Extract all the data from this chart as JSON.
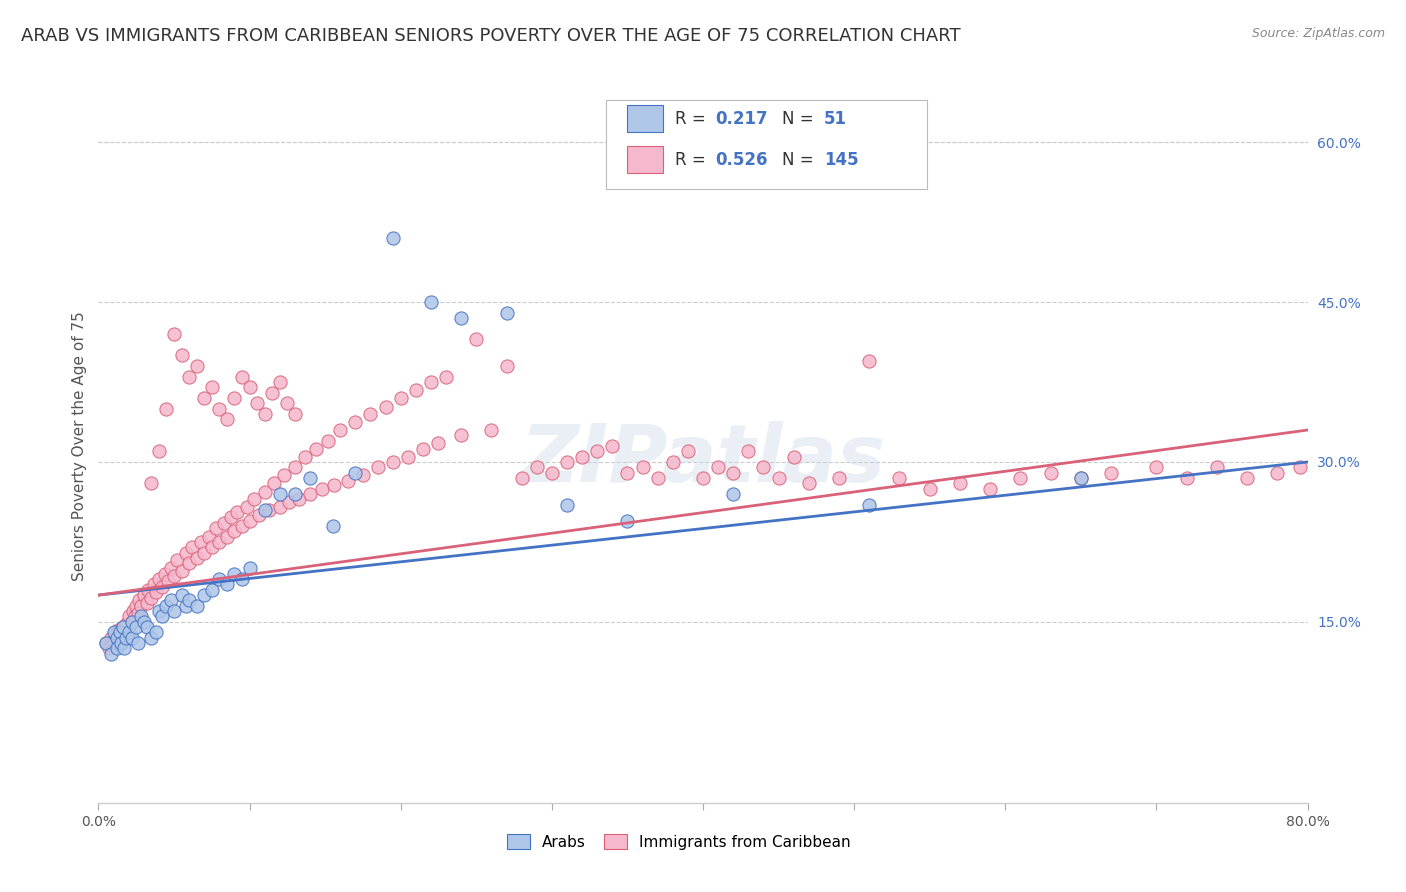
{
  "title": "ARAB VS IMMIGRANTS FROM CARIBBEAN SENIORS POVERTY OVER THE AGE OF 75 CORRELATION CHART",
  "source": "Source: ZipAtlas.com",
  "ylabel": "Seniors Poverty Over the Age of 75",
  "watermark": "ZIPatlas",
  "arab_R": 0.217,
  "arab_N": 51,
  "carib_R": 0.526,
  "carib_N": 145,
  "arab_color": "#aec6e8",
  "carib_color": "#f5b8cc",
  "arab_line_color": "#4472c4",
  "carib_line_color": "#d9627a",
  "xlim": [
    0.0,
    0.8
  ],
  "ylim": [
    -0.02,
    0.65
  ],
  "x_ticks": [
    0.0,
    0.1,
    0.2,
    0.3,
    0.4,
    0.5,
    0.6,
    0.7,
    0.8
  ],
  "x_tick_labels": [
    "0.0%",
    "",
    "",
    "",
    "",
    "",
    "",
    "",
    "80.0%"
  ],
  "y_ticks_right": [
    0.15,
    0.3,
    0.45,
    0.6
  ],
  "y_tick_labels_right": [
    "15.0%",
    "30.0%",
    "45.0%",
    "60.0%"
  ],
  "legend_arab_label": "Arabs",
  "legend_carib_label": "Immigrants from Caribbean",
  "background_color": "#ffffff",
  "grid_color": "#cccccc",
  "title_fontsize": 13,
  "axis_fontsize": 11,
  "tick_fontsize": 10,
  "arab_x": [
    0.005,
    0.008,
    0.01,
    0.012,
    0.012,
    0.014,
    0.015,
    0.016,
    0.017,
    0.018,
    0.02,
    0.022,
    0.022,
    0.025,
    0.026,
    0.028,
    0.03,
    0.032,
    0.035,
    0.038,
    0.04,
    0.042,
    0.045,
    0.048,
    0.05,
    0.055,
    0.058,
    0.06,
    0.065,
    0.07,
    0.075,
    0.08,
    0.085,
    0.09,
    0.095,
    0.1,
    0.11,
    0.12,
    0.13,
    0.14,
    0.155,
    0.17,
    0.195,
    0.22,
    0.24,
    0.27,
    0.31,
    0.35,
    0.42,
    0.51,
    0.65
  ],
  "arab_y": [
    0.13,
    0.12,
    0.14,
    0.135,
    0.125,
    0.14,
    0.13,
    0.145,
    0.125,
    0.135,
    0.14,
    0.15,
    0.135,
    0.145,
    0.13,
    0.155,
    0.15,
    0.145,
    0.135,
    0.14,
    0.16,
    0.155,
    0.165,
    0.17,
    0.16,
    0.175,
    0.165,
    0.17,
    0.165,
    0.175,
    0.18,
    0.19,
    0.185,
    0.195,
    0.19,
    0.2,
    0.255,
    0.27,
    0.27,
    0.285,
    0.24,
    0.29,
    0.51,
    0.45,
    0.435,
    0.44,
    0.26,
    0.245,
    0.27,
    0.26,
    0.285
  ],
  "carib_x": [
    0.005,
    0.007,
    0.008,
    0.009,
    0.01,
    0.011,
    0.012,
    0.013,
    0.014,
    0.015,
    0.016,
    0.017,
    0.018,
    0.019,
    0.02,
    0.022,
    0.023,
    0.024,
    0.025,
    0.026,
    0.027,
    0.028,
    0.03,
    0.032,
    0.033,
    0.035,
    0.037,
    0.038,
    0.04,
    0.042,
    0.044,
    0.046,
    0.048,
    0.05,
    0.052,
    0.055,
    0.058,
    0.06,
    0.062,
    0.065,
    0.068,
    0.07,
    0.073,
    0.075,
    0.078,
    0.08,
    0.083,
    0.085,
    0.088,
    0.09,
    0.092,
    0.095,
    0.098,
    0.1,
    0.103,
    0.106,
    0.11,
    0.113,
    0.116,
    0.12,
    0.123,
    0.126,
    0.13,
    0.133,
    0.137,
    0.14,
    0.144,
    0.148,
    0.152,
    0.156,
    0.16,
    0.165,
    0.17,
    0.175,
    0.18,
    0.185,
    0.19,
    0.195,
    0.2,
    0.205,
    0.21,
    0.215,
    0.22,
    0.225,
    0.23,
    0.24,
    0.25,
    0.26,
    0.27,
    0.28,
    0.29,
    0.3,
    0.31,
    0.32,
    0.33,
    0.34,
    0.35,
    0.36,
    0.37,
    0.38,
    0.39,
    0.4,
    0.41,
    0.42,
    0.43,
    0.44,
    0.45,
    0.46,
    0.47,
    0.49,
    0.51,
    0.53,
    0.55,
    0.57,
    0.59,
    0.61,
    0.63,
    0.65,
    0.67,
    0.7,
    0.72,
    0.74,
    0.76,
    0.78,
    0.795,
    0.035,
    0.04,
    0.045,
    0.05,
    0.055,
    0.06,
    0.065,
    0.07,
    0.075,
    0.08,
    0.085,
    0.09,
    0.095,
    0.1,
    0.105,
    0.11,
    0.115,
    0.12,
    0.125,
    0.13
  ],
  "carib_y": [
    0.13,
    0.125,
    0.135,
    0.128,
    0.132,
    0.14,
    0.135,
    0.142,
    0.13,
    0.138,
    0.145,
    0.142,
    0.148,
    0.138,
    0.155,
    0.15,
    0.16,
    0.155,
    0.165,
    0.158,
    0.17,
    0.165,
    0.175,
    0.168,
    0.18,
    0.172,
    0.185,
    0.178,
    0.19,
    0.183,
    0.195,
    0.188,
    0.2,
    0.193,
    0.208,
    0.198,
    0.215,
    0.205,
    0.22,
    0.21,
    0.225,
    0.215,
    0.23,
    0.22,
    0.238,
    0.225,
    0.243,
    0.23,
    0.248,
    0.235,
    0.253,
    0.24,
    0.258,
    0.245,
    0.265,
    0.25,
    0.272,
    0.255,
    0.28,
    0.258,
    0.288,
    0.262,
    0.295,
    0.265,
    0.305,
    0.27,
    0.312,
    0.275,
    0.32,
    0.278,
    0.33,
    0.282,
    0.338,
    0.288,
    0.345,
    0.295,
    0.352,
    0.3,
    0.36,
    0.305,
    0.368,
    0.312,
    0.375,
    0.318,
    0.38,
    0.325,
    0.415,
    0.33,
    0.39,
    0.285,
    0.295,
    0.29,
    0.3,
    0.305,
    0.31,
    0.315,
    0.29,
    0.295,
    0.285,
    0.3,
    0.31,
    0.285,
    0.295,
    0.29,
    0.31,
    0.295,
    0.285,
    0.305,
    0.28,
    0.285,
    0.395,
    0.285,
    0.275,
    0.28,
    0.275,
    0.285,
    0.29,
    0.285,
    0.29,
    0.295,
    0.285,
    0.295,
    0.285,
    0.29,
    0.295,
    0.28,
    0.31,
    0.35,
    0.42,
    0.4,
    0.38,
    0.39,
    0.36,
    0.37,
    0.35,
    0.34,
    0.36,
    0.38,
    0.37,
    0.355,
    0.345,
    0.365,
    0.375,
    0.355,
    0.345
  ]
}
